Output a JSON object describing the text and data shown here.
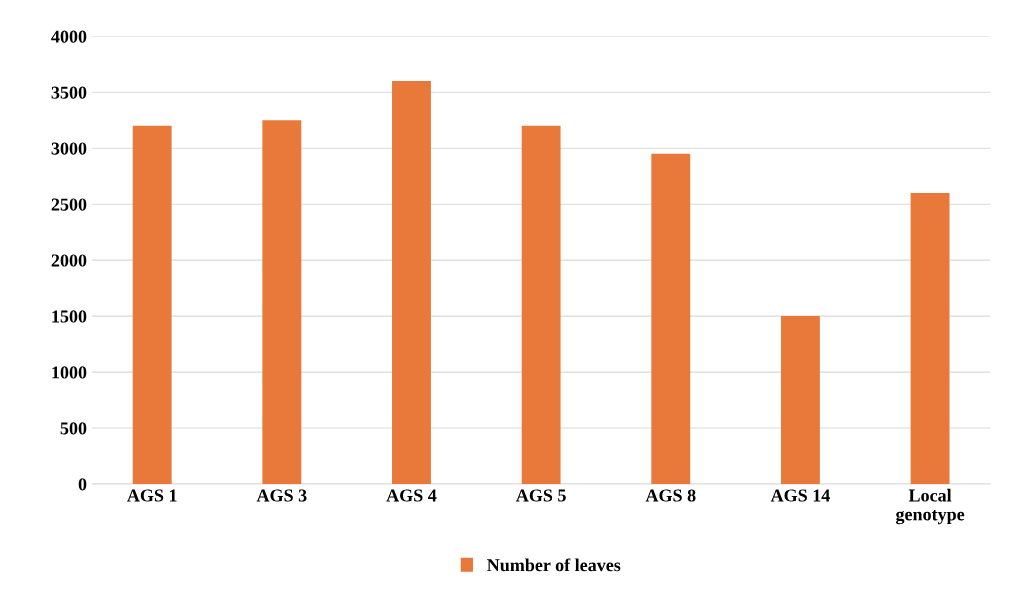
{
  "chart_data": {
    "type": "bar",
    "categories": [
      "AGS 1",
      "AGS 3",
      "AGS 4",
      "AGS 5",
      "AGS 8",
      "AGS 14",
      "Local\ngenotype"
    ],
    "series": [
      {
        "name": "Number of leaves",
        "color": "#e8793a",
        "values": [
          3200,
          3250,
          3600,
          3200,
          2950,
          1500,
          2600
        ]
      }
    ],
    "ylim": [
      0,
      4000
    ],
    "yticks": [
      0,
      500,
      1000,
      1500,
      2000,
      2500,
      3000,
      3500,
      4000
    ],
    "grid": "y",
    "legend": "bottom"
  }
}
